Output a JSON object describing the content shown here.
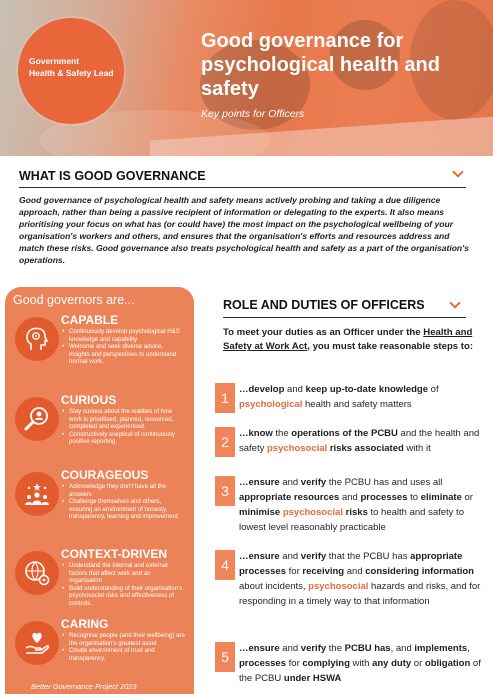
{
  "hero": {
    "badge_line1": "Government",
    "badge_line2": "Health & Safety Lead",
    "title": "Good governance for psychological health and safety",
    "subtitle": "Key points for Officers"
  },
  "governance": {
    "heading": "WHAT IS GOOD GOVERNANCE",
    "text": "Good governance of psychological health and safety means actively probing and taking a due diligence approach, rather than being a passive recipient of information or delegating to the experts. It also means prioritising your focus on what has (or could have) the most impact on the psychological wellbeing of your organisation's workers and others, and ensures that the organisation's efforts and resources address and match these risks. Good governance also treats psychological health and safety as a part of the organisation's operations."
  },
  "panel": {
    "title": "Good governors are...",
    "footer": "Better Governance Project 2023",
    "qualities": [
      {
        "title": "CAPABLE",
        "icon": "head-gears-icon",
        "points": [
          "Continuously develop psychological H&S knowledge and capability",
          "Welcome and seek diverse advice, insights and perspectives to understand normal work."
        ]
      },
      {
        "title": "CURIOUS",
        "icon": "magnifier-person-icon",
        "points": [
          "Stay curious about the realities of how work is prioritised, planned, resourced, completed and experienced.",
          "Constructively sceptical of continuously positive reporting."
        ]
      },
      {
        "title": "COURAGEOUS",
        "icon": "people-stars-icon",
        "points": [
          "Acknowledge they don't have all the answers",
          "Challenge themselves and others, ensuring an environment of honesty, transparency, learning and improvement."
        ]
      },
      {
        "title": "CONTEXT-DRIVEN",
        "icon": "globe-gear-icon",
        "points": [
          "Understand the internal and external factors that affect work and an organisation",
          "Build understanding of their organisation's psychosocial risks and effectiveness of controls."
        ]
      },
      {
        "title": "CARING",
        "icon": "hand-heart-icon",
        "points": [
          "Recognise people (and their wellbeing) are the organisation's greatest asset",
          "Create environment of trust and transparency."
        ]
      }
    ]
  },
  "role": {
    "heading": "ROLE AND DUTIES OF OFFICERS",
    "intro_pre": "To meet your duties as an Officer under the ",
    "intro_link": "Health and Safety at Work Act",
    "intro_post": ", you must take reasonable steps to:",
    "steps": [
      {
        "n": "1",
        "parts": [
          [
            "b",
            "…develop"
          ],
          [
            "n",
            " and "
          ],
          [
            "b",
            "keep up-to-date knowledge"
          ],
          [
            "n",
            " of "
          ],
          [
            "o",
            "psychological"
          ],
          [
            "n",
            " health and safety matters"
          ]
        ]
      },
      {
        "n": "2",
        "parts": [
          [
            "b",
            "…know"
          ],
          [
            "n",
            " the "
          ],
          [
            "b",
            "operations of the PCBU"
          ],
          [
            "n",
            " and the health and safety "
          ],
          [
            "o",
            "psychosocial"
          ],
          [
            "n",
            " "
          ],
          [
            "b",
            "risks associated"
          ],
          [
            "n",
            " with it"
          ]
        ]
      },
      {
        "n": "3",
        "parts": [
          [
            "b",
            "…ensure"
          ],
          [
            "n",
            " and "
          ],
          [
            "b",
            "verify"
          ],
          [
            "n",
            " the PCBU has and uses all "
          ],
          [
            "b",
            "appropriate resources"
          ],
          [
            "n",
            " and "
          ],
          [
            "b",
            "processes"
          ],
          [
            "n",
            " to "
          ],
          [
            "b",
            "eliminate"
          ],
          [
            "n",
            " or "
          ],
          [
            "b",
            "minimise"
          ],
          [
            "n",
            " "
          ],
          [
            "o",
            "psychosocial"
          ],
          [
            "n",
            " "
          ],
          [
            "b",
            "risks"
          ],
          [
            "n",
            " to health and safety to lowest level reasonably practicable"
          ]
        ]
      },
      {
        "n": "4",
        "parts": [
          [
            "b",
            "…ensure"
          ],
          [
            "n",
            " and "
          ],
          [
            "b",
            "verify"
          ],
          [
            "n",
            " that the PCBU has "
          ],
          [
            "b",
            "appropriate processes"
          ],
          [
            "n",
            " for "
          ],
          [
            "b",
            "receiving"
          ],
          [
            "n",
            " and "
          ],
          [
            "b",
            "considering information"
          ],
          [
            "n",
            " about incidents, "
          ],
          [
            "o",
            "psychosocial"
          ],
          [
            "n",
            " hazards and risks, and for responding in a timely way to that information"
          ]
        ]
      },
      {
        "n": "5",
        "parts": [
          [
            "b",
            "…ensure"
          ],
          [
            "n",
            " and "
          ],
          [
            "b",
            "verify"
          ],
          [
            "n",
            " the "
          ],
          [
            "b",
            "PCBU has"
          ],
          [
            "n",
            ", and "
          ],
          [
            "b",
            "implements"
          ],
          [
            "n",
            ", "
          ],
          [
            "b",
            "processes"
          ],
          [
            "n",
            " for "
          ],
          [
            "b",
            "complying"
          ],
          [
            "n",
            " with "
          ],
          [
            "b",
            "any duty"
          ],
          [
            "n",
            " or "
          ],
          [
            "b",
            "obligation"
          ],
          [
            "n",
            " of the PCBU "
          ],
          [
            "b",
            "under HSWA"
          ]
        ]
      }
    ]
  },
  "colors": {
    "accent": "#e56a3c",
    "panel": "#ec8358",
    "number_box": "#ef8559"
  }
}
